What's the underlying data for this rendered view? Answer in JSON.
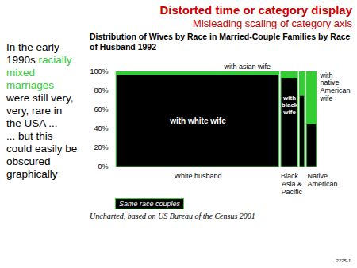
{
  "slide": {
    "title": "Distorted time or category display",
    "subtitle": "Misleading scaling of category axis",
    "color": "#cc0000",
    "side_text": [
      [
        {
          "text": "In the early 1990s "
        },
        {
          "text": "racially mixed marriages",
          "color": "#33cc33"
        },
        {
          "text": " were still very, very, rare in the USA ..."
        }
      ],
      [
        {
          "text": "... but this could easily be obscured graphically"
        }
      ]
    ],
    "page_number": "2225-1"
  },
  "chart_data": {
    "type": "mosaic",
    "title": "Distribution of Wives by Race in Married-Couple Families by Race of Husband 1992",
    "caption": "Uncharted, based on US Bureau of the Census 2001",
    "categories": [
      "White husband",
      "Black",
      "Asia & Pacific",
      "Native American"
    ],
    "widths": [
      81.5,
      9.2,
      3.4,
      5.9
    ],
    "series": [
      {
        "name": "Same race couples",
        "color": "#000000",
        "values": [
          97,
          93,
          75,
          45
        ]
      },
      {
        "name": null,
        "color": "#33cc33",
        "values": [
          3,
          7,
          25,
          55
        ]
      }
    ],
    "annotations": [
      {
        "text": "with white wife",
        "category": "White husband"
      },
      {
        "text": "with asian wife",
        "category": "White husband"
      },
      {
        "text": "with black wife",
        "category": "Black"
      },
      {
        "text": "with native American wife",
        "category": "Native American"
      }
    ],
    "ylim": [
      0,
      100
    ],
    "yticks": [
      {
        "value": 0,
        "label": "0%"
      },
      {
        "value": 20,
        "label": "20%"
      },
      {
        "value": 40,
        "label": "40%"
      },
      {
        "value": 60,
        "label": "60%"
      },
      {
        "value": 80,
        "label": "80%"
      },
      {
        "value": 100,
        "label": "100%"
      }
    ],
    "stacked": true,
    "grid": false,
    "legend": "bottom-left",
    "tick_labels": "y"
  }
}
